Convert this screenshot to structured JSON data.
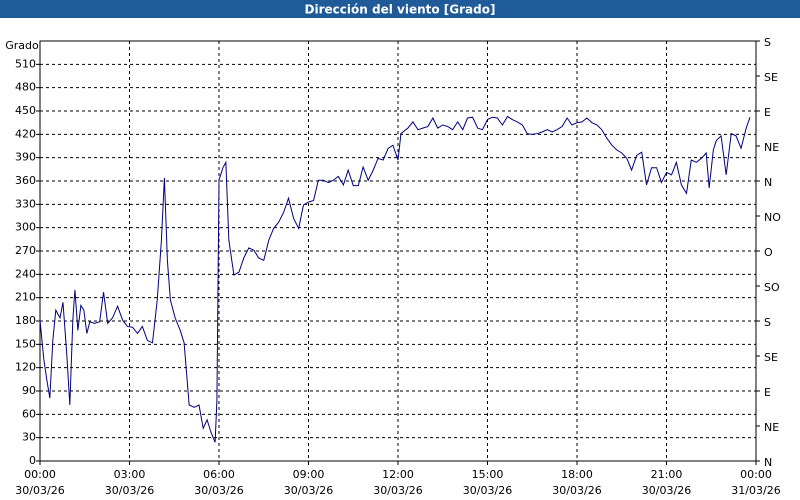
{
  "chart_data": {
    "type": "line",
    "title": "Dirección del viento [Grado]",
    "y_label": "Grado",
    "x": [
      0,
      0.13,
      0.23,
      0.33,
      0.43,
      0.53,
      0.67,
      0.77,
      0.9,
      1.0,
      1.1,
      1.17,
      1.27,
      1.37,
      1.47,
      1.57,
      1.67,
      1.83,
      2.0,
      2.13,
      2.27,
      2.43,
      2.6,
      2.77,
      2.93,
      3.1,
      3.27,
      3.43,
      3.6,
      3.77,
      3.93,
      4.07,
      4.17,
      4.27,
      4.37,
      4.53,
      4.7,
      4.83,
      5.0,
      5.17,
      5.33,
      5.47,
      5.6,
      5.73,
      5.87,
      5.93,
      6.0,
      6.13,
      6.23,
      6.33,
      6.5,
      6.67,
      6.83,
      7.0,
      7.17,
      7.33,
      7.5,
      7.67,
      7.83,
      8.0,
      8.17,
      8.33,
      8.5,
      8.67,
      8.83,
      9.0,
      9.17,
      9.33,
      9.5,
      9.67,
      9.83,
      10.0,
      10.17,
      10.33,
      10.5,
      10.67,
      10.83,
      11.0,
      11.17,
      11.33,
      11.5,
      11.67,
      11.83,
      12.0,
      12.1,
      12.33,
      12.5,
      12.67,
      12.83,
      13.0,
      13.17,
      13.33,
      13.5,
      13.67,
      13.83,
      14.0,
      14.17,
      14.33,
      14.5,
      14.67,
      14.83,
      15.0,
      15.17,
      15.33,
      15.5,
      15.67,
      15.83,
      16.0,
      16.17,
      16.33,
      16.5,
      16.67,
      16.83,
      17.0,
      17.17,
      17.33,
      17.5,
      17.67,
      17.83,
      18.0,
      18.17,
      18.33,
      18.5,
      18.67,
      18.83,
      19.0,
      19.17,
      19.33,
      19.5,
      19.67,
      19.83,
      20.0,
      20.17,
      20.33,
      20.5,
      20.67,
      20.83,
      21.0,
      21.17,
      21.33,
      21.5,
      21.67,
      21.83,
      22.0,
      22.17,
      22.33,
      22.43,
      22.57,
      22.67,
      22.83,
      23.0,
      23.17,
      23.33,
      23.5,
      23.67,
      23.8
    ],
    "series": [
      {
        "name": "Dirección del viento",
        "color": "#000080",
        "values": [
          181,
          130,
          104,
          81,
          155,
          194,
          184,
          204,
          136,
          72,
          181,
          220,
          168,
          200,
          194,
          164,
          179,
          177,
          179,
          217,
          177,
          184,
          199,
          181,
          173,
          172,
          164,
          173,
          155,
          152,
          207,
          284,
          364,
          258,
          207,
          184,
          168,
          152,
          72,
          69,
          72,
          42,
          53,
          37,
          24,
          78,
          361,
          377,
          384,
          284,
          239,
          243,
          261,
          274,
          271,
          261,
          258,
          284,
          299,
          307,
          320,
          338,
          312,
          299,
          329,
          333,
          335,
          361,
          361,
          358,
          361,
          366,
          355,
          374,
          354,
          354,
          378,
          361,
          374,
          389,
          387,
          402,
          406,
          387,
          421,
          428,
          436,
          426,
          428,
          430,
          441,
          428,
          432,
          430,
          426,
          436,
          426,
          441,
          442,
          428,
          426,
          439,
          442,
          441,
          432,
          443,
          439,
          436,
          432,
          421,
          420,
          421,
          423,
          426,
          423,
          426,
          430,
          441,
          432,
          435,
          436,
          441,
          435,
          432,
          426,
          415,
          406,
          400,
          396,
          389,
          374,
          393,
          397,
          355,
          377,
          377,
          358,
          371,
          368,
          384,
          355,
          344,
          387,
          384,
          389,
          396,
          351,
          400,
          412,
          418,
          368,
          421,
          418,
          402,
          428,
          442
        ]
      }
    ],
    "xlim": [
      0,
      24
    ],
    "xticks": [
      {
        "value": 0,
        "label": "00:00"
      },
      {
        "value": 3,
        "label": "03:00"
      },
      {
        "value": 6,
        "label": "06:00"
      },
      {
        "value": 9,
        "label": "09:00"
      },
      {
        "value": 12,
        "label": "12:00"
      },
      {
        "value": 15,
        "label": "15:00"
      },
      {
        "value": 18,
        "label": "18:00"
      },
      {
        "value": 21,
        "label": "21:00"
      },
      {
        "value": 24,
        "label": "00:00"
      }
    ],
    "xtick_dates": [
      "30/03/26",
      "30/03/26",
      "30/03/26",
      "30/03/26",
      "30/03/26",
      "30/03/26",
      "30/03/26",
      "30/03/26",
      "31/03/26"
    ],
    "ylim": [
      0,
      540
    ],
    "yticks": [
      0,
      30,
      60,
      90,
      120,
      150,
      180,
      210,
      240,
      270,
      300,
      330,
      360,
      390,
      420,
      450,
      480,
      510
    ],
    "y2lim": [
      0,
      540
    ],
    "y2ticks": [
      {
        "value": 0,
        "label": "N"
      },
      {
        "value": 45,
        "label": "NE"
      },
      {
        "value": 90,
        "label": "E"
      },
      {
        "value": 135,
        "label": "SE"
      },
      {
        "value": 180,
        "label": "S"
      },
      {
        "value": 225,
        "label": "SO"
      },
      {
        "value": 270,
        "label": "O"
      },
      {
        "value": 315,
        "label": "NO"
      },
      {
        "value": 360,
        "label": "N"
      },
      {
        "value": 405,
        "label": "NE"
      },
      {
        "value": 450,
        "label": "E"
      },
      {
        "value": 495,
        "label": "SE"
      },
      {
        "value": 540,
        "label": "S"
      }
    ],
    "grid": true
  }
}
